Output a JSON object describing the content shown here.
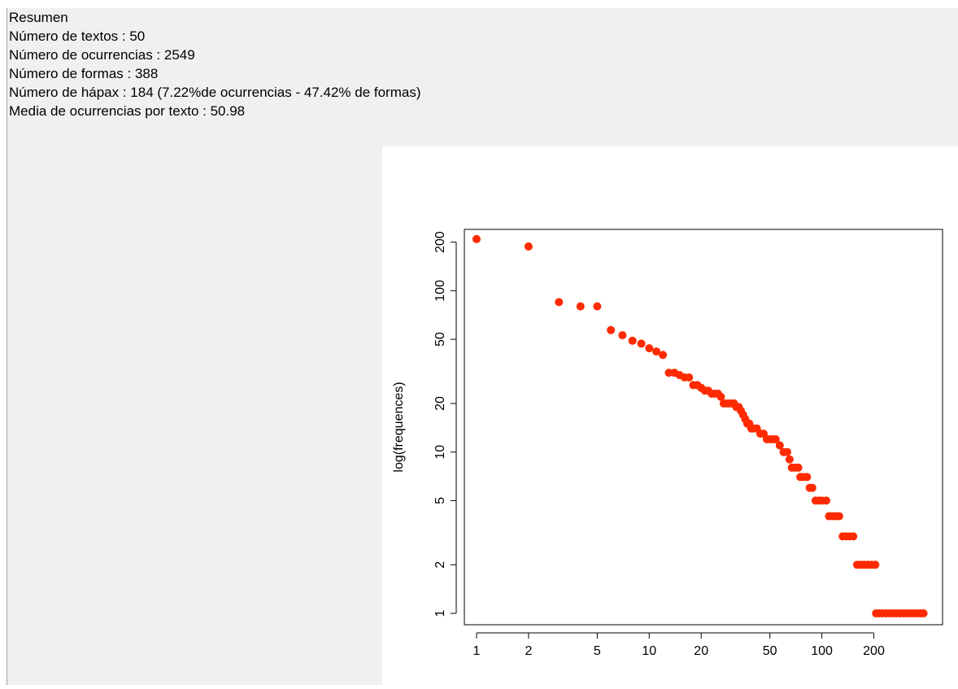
{
  "summary": {
    "title": "Resumen",
    "lines": [
      "Número de textos : 50",
      "Número de ocurrencias : 2549",
      "Número de formas : 388",
      "Número de hápax : 184 (7.22%de ocurrencias - 47.42% de formas)",
      "Media de ocurrencias por texto : 50.98"
    ]
  },
  "chart_data": {
    "type": "scatter",
    "title": "",
    "xlabel": "",
    "ylabel": "log(frequences)",
    "xscale": "log",
    "yscale": "log",
    "xlim": [
      0.85,
      500
    ],
    "ylim": [
      0.85,
      240
    ],
    "x_ticks": [
      1,
      2,
      5,
      10,
      20,
      50,
      100,
      200
    ],
    "y_ticks": [
      1,
      2,
      5,
      10,
      20,
      50,
      100,
      200
    ],
    "grid": false,
    "point_color": "#ff2a00",
    "series": [
      {
        "points": [
          [
            1,
            209
          ],
          [
            2,
            188
          ],
          [
            3,
            85
          ],
          [
            4,
            80
          ],
          [
            5,
            80
          ],
          [
            6,
            57
          ],
          [
            7,
            53
          ],
          [
            8,
            49
          ],
          [
            9,
            47
          ],
          [
            10,
            44
          ],
          [
            11,
            42
          ],
          [
            12,
            40
          ],
          [
            13,
            31
          ],
          [
            14,
            31
          ],
          [
            15,
            30
          ],
          [
            16,
            29
          ],
          [
            17,
            29
          ],
          [
            18,
            26
          ],
          [
            19,
            26
          ],
          [
            20,
            25
          ],
          [
            21,
            24
          ],
          [
            22,
            24
          ],
          [
            23,
            23
          ],
          [
            24,
            23
          ],
          [
            25,
            23
          ],
          [
            26,
            22
          ],
          [
            27,
            20
          ],
          [
            28,
            20
          ],
          [
            29,
            20
          ],
          [
            30,
            20
          ],
          [
            31,
            20
          ],
          [
            32,
            19
          ],
          [
            33,
            19
          ],
          [
            34,
            18
          ],
          [
            35,
            17
          ],
          [
            36,
            16
          ],
          [
            37,
            15
          ],
          [
            38,
            15
          ],
          [
            39,
            14
          ],
          [
            40,
            14
          ],
          [
            42,
            14
          ],
          [
            44,
            13
          ],
          [
            46,
            13
          ],
          [
            48,
            12
          ],
          [
            50,
            12
          ],
          [
            52,
            12
          ],
          [
            54,
            12
          ],
          [
            57,
            11
          ],
          [
            60,
            10
          ],
          [
            63,
            10
          ],
          [
            65,
            9
          ],
          [
            67,
            8
          ],
          [
            70,
            8
          ],
          [
            73,
            8
          ],
          [
            75,
            7
          ],
          [
            78,
            7
          ],
          [
            82,
            7
          ],
          [
            85,
            6
          ],
          [
            88,
            6
          ],
          [
            92,
            5
          ],
          [
            96,
            5
          ],
          [
            100,
            5
          ],
          [
            106,
            5
          ],
          [
            110,
            4
          ],
          [
            115,
            4
          ],
          [
            120,
            4
          ],
          [
            126,
            4
          ],
          [
            132,
            3
          ],
          [
            138,
            3
          ],
          [
            145,
            3
          ],
          [
            152,
            3
          ],
          [
            160,
            2
          ],
          [
            168,
            2
          ],
          [
            176,
            2
          ],
          [
            185,
            2
          ],
          [
            194,
            2
          ],
          [
            204,
            2
          ],
          [
            206,
            1
          ],
          [
            214,
            1
          ],
          [
            224,
            1
          ],
          [
            235,
            1
          ],
          [
            246,
            1
          ],
          [
            258,
            1
          ],
          [
            270,
            1
          ],
          [
            283,
            1
          ],
          [
            296,
            1
          ],
          [
            310,
            1
          ],
          [
            325,
            1
          ],
          [
            340,
            1
          ],
          [
            356,
            1
          ],
          [
            372,
            1
          ],
          [
            388,
            1
          ]
        ]
      }
    ]
  }
}
